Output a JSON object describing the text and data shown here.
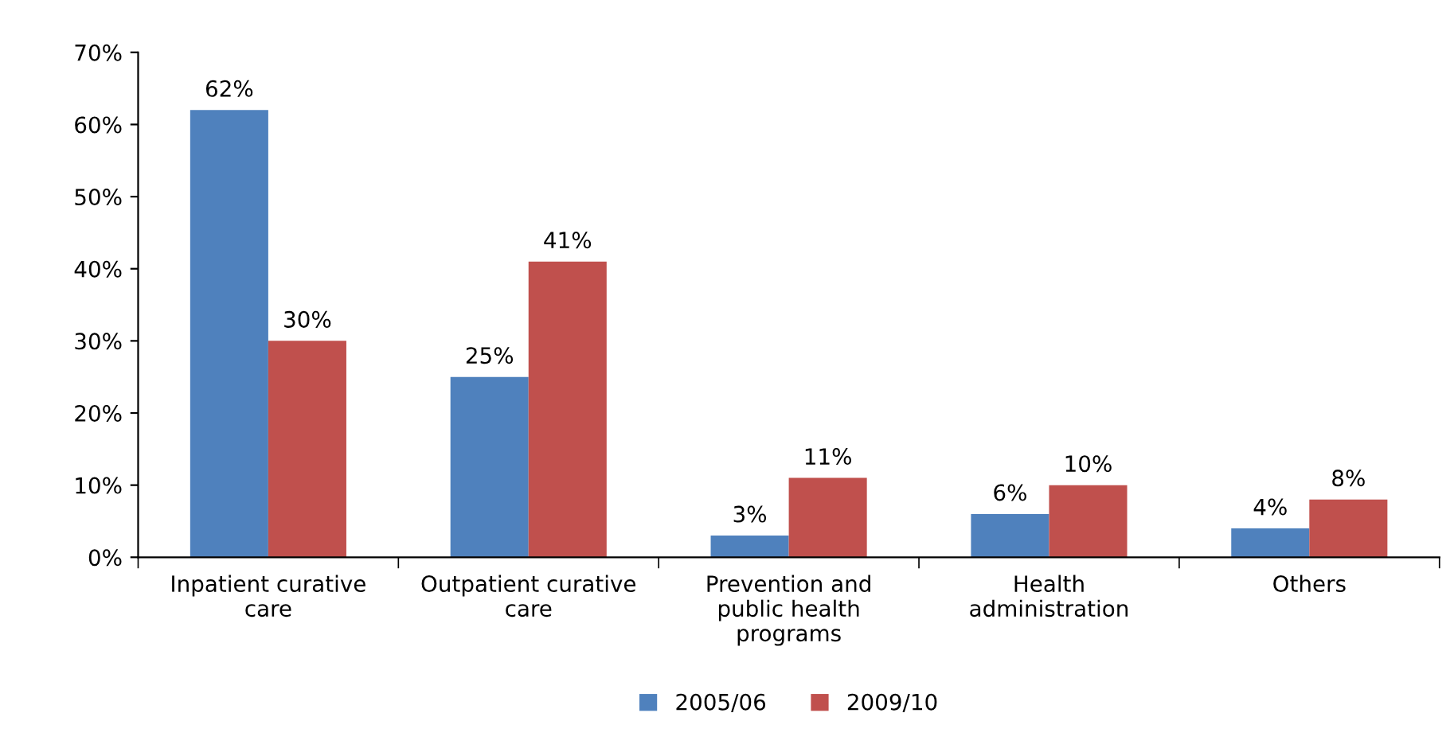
{
  "chart_data": {
    "type": "bar",
    "categories": [
      "Inpatient curative\ncare",
      "Outpatient curative\ncare",
      "Prevention and\npublic health\nprograms",
      "Health\nadministration",
      "Others"
    ],
    "series": [
      {
        "name": "2005/06",
        "color": "#4f81bd",
        "values": [
          62,
          25,
          3,
          6,
          4
        ],
        "value_labels": [
          "62%",
          "25%",
          "3%",
          "6%",
          "4%"
        ]
      },
      {
        "name": "2009/10",
        "color": "#c0504d",
        "values": [
          30,
          41,
          11,
          10,
          8
        ],
        "value_labels": [
          "30%",
          "41%",
          "11%",
          "10%",
          "8%"
        ]
      }
    ],
    "ylim": [
      0,
      70
    ],
    "yticks": [
      {
        "value": 0,
        "label": "0%"
      },
      {
        "value": 10,
        "label": "10%"
      },
      {
        "value": 20,
        "label": "20%"
      },
      {
        "value": 30,
        "label": "30%"
      },
      {
        "value": 40,
        "label": "40%"
      },
      {
        "value": 50,
        "label": "50%"
      },
      {
        "value": 60,
        "label": "60%"
      },
      {
        "value": 70,
        "label": "70%"
      }
    ],
    "grid": false,
    "legend": "bottom"
  }
}
